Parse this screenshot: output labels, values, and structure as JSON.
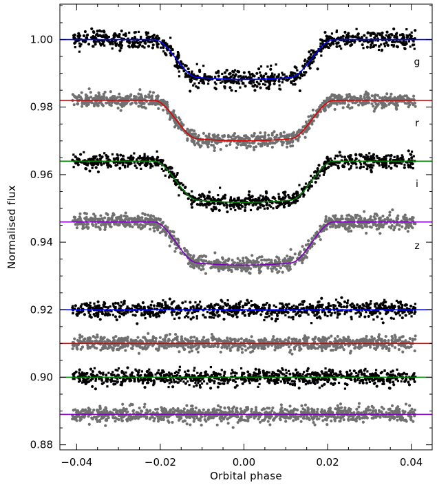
{
  "chart_data": {
    "type": "scatter",
    "title": "",
    "xlabel": "Orbital phase",
    "ylabel": "Normalised flux",
    "xlim": [
      -0.044,
      0.045
    ],
    "ylim": [
      0.8785,
      1.0105
    ],
    "x_ticks": [
      -0.04,
      -0.02,
      0.0,
      0.02,
      0.04
    ],
    "x_tick_labels": [
      "−0.04",
      "−0.02",
      "0.00",
      "0.02",
      "0.04"
    ],
    "y_ticks": [
      0.88,
      0.9,
      0.92,
      0.94,
      0.96,
      0.98,
      1.0
    ],
    "y_tick_labels": [
      "0.88",
      "0.90",
      "0.92",
      "0.94",
      "0.96",
      "0.98",
      "1.00"
    ],
    "grid": false,
    "data_x_range": [
      -0.041,
      0.041
    ],
    "series": [
      {
        "label": "g",
        "kind": "light_curve",
        "point_color": "#000000",
        "model_color": "#0000ff",
        "baseline": 1.0,
        "depth": 0.0118,
        "t_contact_outer": 0.0215,
        "t_contact_inner": 0.011,
        "scatter": 0.0013,
        "n_points": 900
      },
      {
        "label": "r",
        "kind": "light_curve",
        "point_color": "#707070",
        "model_color": "#e00000",
        "baseline": 0.982,
        "depth": 0.012,
        "t_contact_outer": 0.0215,
        "t_contact_inner": 0.011,
        "scatter": 0.001,
        "n_points": 1000
      },
      {
        "label": "i",
        "kind": "light_curve",
        "point_color": "#000000",
        "model_color": "#008000",
        "baseline": 0.964,
        "depth": 0.0122,
        "t_contact_outer": 0.0215,
        "t_contact_inner": 0.011,
        "scatter": 0.0011,
        "n_points": 900
      },
      {
        "label": "z",
        "kind": "light_curve",
        "point_color": "#707070",
        "model_color": "#8000c0",
        "baseline": 0.946,
        "depth": 0.0128,
        "t_contact_outer": 0.0215,
        "t_contact_inner": 0.011,
        "scatter": 0.0011,
        "n_points": 1000
      },
      {
        "kind": "residuals",
        "point_color": "#000000",
        "model_color": "#0000ff",
        "baseline": 0.92,
        "scatter": 0.0012,
        "n_points": 900
      },
      {
        "kind": "residuals",
        "point_color": "#707070",
        "model_color": "#e00000",
        "baseline": 0.91,
        "scatter": 0.001,
        "n_points": 1000
      },
      {
        "kind": "residuals",
        "point_color": "#000000",
        "model_color": "#008000",
        "baseline": 0.9,
        "scatter": 0.0011,
        "n_points": 900
      },
      {
        "kind": "residuals",
        "point_color": "#707070",
        "model_color": "#8000c0",
        "baseline": 0.889,
        "scatter": 0.0011,
        "n_points": 1000
      }
    ]
  }
}
